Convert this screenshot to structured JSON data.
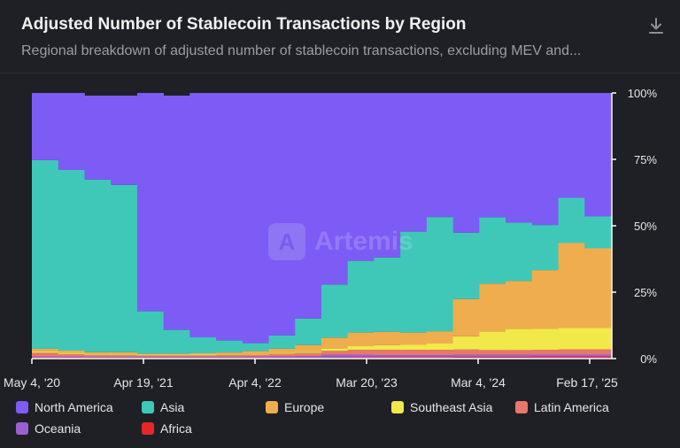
{
  "header": {
    "title": "Adjusted Number of Stablecoin Transactions by Region",
    "subtitle": "Regional breakdown of adjusted number of stablecoin transactions, excluding MEV and..."
  },
  "icons": {
    "download": "download-icon"
  },
  "watermark": {
    "text": "Artemis"
  },
  "colors": {
    "North America": "#7c5cf5",
    "Asia": "#3fc8b8",
    "Europe": "#f0ad4e",
    "Southeast Asia": "#f1e84a",
    "Latin America": "#e8786a",
    "Oceania": "#9b5fd1",
    "Africa": "#e8262a"
  },
  "chart_data": {
    "type": "area",
    "stacked": "percent",
    "x_ticks": [
      "May 4, '20",
      "Apr 19, '21",
      "Apr 4, '22",
      "Mar 20, '23",
      "Mar 4, '24",
      "Feb 17, '25"
    ],
    "y_ticks": [
      "0%",
      "25%",
      "50%",
      "75%",
      "100%"
    ],
    "ylim": [
      0,
      100
    ],
    "y_axis_position": "right",
    "legend_position": "bottom",
    "x": [
      "2020-05",
      "2020-08",
      "2020-11",
      "2021-02",
      "2021-04",
      "2021-06",
      "2021-09",
      "2021-12",
      "2022-03",
      "2022-06",
      "2022-09",
      "2022-12",
      "2023-03",
      "2023-06",
      "2023-09",
      "2023-12",
      "2024-03",
      "2024-06",
      "2024-09",
      "2024-12",
      "2025-02",
      "2025-04"
    ],
    "series": [
      {
        "name": "Africa",
        "values": [
          0.3,
          0.3,
          0.3,
          0.3,
          0.3,
          0.3,
          0.3,
          0.3,
          0.3,
          0.3,
          0.3,
          0.4,
          0.5,
          0.5,
          0.5,
          0.5,
          0.6,
          0.6,
          0.6,
          0.7,
          0.7,
          0.7
        ]
      },
      {
        "name": "Oceania",
        "values": [
          0.4,
          0.4,
          0.3,
          0.3,
          0.3,
          0.3,
          0.3,
          0.3,
          0.4,
          0.5,
          0.6,
          1.0,
          1.0,
          0.8,
          0.8,
          0.8,
          0.8,
          0.8,
          0.8,
          0.8,
          0.8,
          0.8
        ]
      },
      {
        "name": "Latin America",
        "values": [
          1.5,
          1.0,
          0.8,
          0.8,
          0.6,
          0.6,
          0.6,
          0.7,
          0.8,
          1.0,
          1.2,
          1.5,
          1.8,
          2.0,
          2.0,
          2.0,
          2.0,
          1.8,
          1.8,
          1.8,
          2.0,
          2.0
        ]
      },
      {
        "name": "Southeast Asia",
        "values": [
          0.5,
          0.5,
          0.5,
          0.5,
          0.3,
          0.3,
          0.3,
          0.3,
          0.3,
          0.4,
          0.5,
          1.0,
          1.5,
          1.8,
          2.0,
          2.5,
          5.0,
          7.0,
          8.0,
          8.0,
          8.0,
          8.0
        ]
      },
      {
        "name": "Europe",
        "values": [
          1.0,
          0.8,
          0.5,
          0.5,
          0.3,
          0.3,
          0.5,
          0.7,
          1.0,
          1.5,
          2.5,
          4.0,
          5.0,
          5.0,
          4.5,
          4.5,
          14.0,
          18.0,
          18.0,
          22.0,
          32.0,
          30.0
        ]
      },
      {
        "name": "Asia",
        "values": [
          71.0,
          68.0,
          65.0,
          63.0,
          16.0,
          9.0,
          6.0,
          4.5,
          3.0,
          5.0,
          10.0,
          20.0,
          27.0,
          28.0,
          38.0,
          43.0,
          25.0,
          25.0,
          22.0,
          17.0,
          17.0,
          12.0
        ]
      },
      {
        "name": "North America",
        "values": [
          25.3,
          29.0,
          31.6,
          33.6,
          82.2,
          88.2,
          92.0,
          93.2,
          94.2,
          91.3,
          84.9,
          72.1,
          63.2,
          61.9,
          52.2,
          46.7,
          52.6,
          46.8,
          48.8,
          49.7,
          39.5,
          46.5
        ]
      }
    ]
  },
  "legend": {
    "items": [
      "North America",
      "Asia",
      "Europe",
      "Southeast Asia",
      "Latin America",
      "Oceania",
      "Africa"
    ]
  }
}
